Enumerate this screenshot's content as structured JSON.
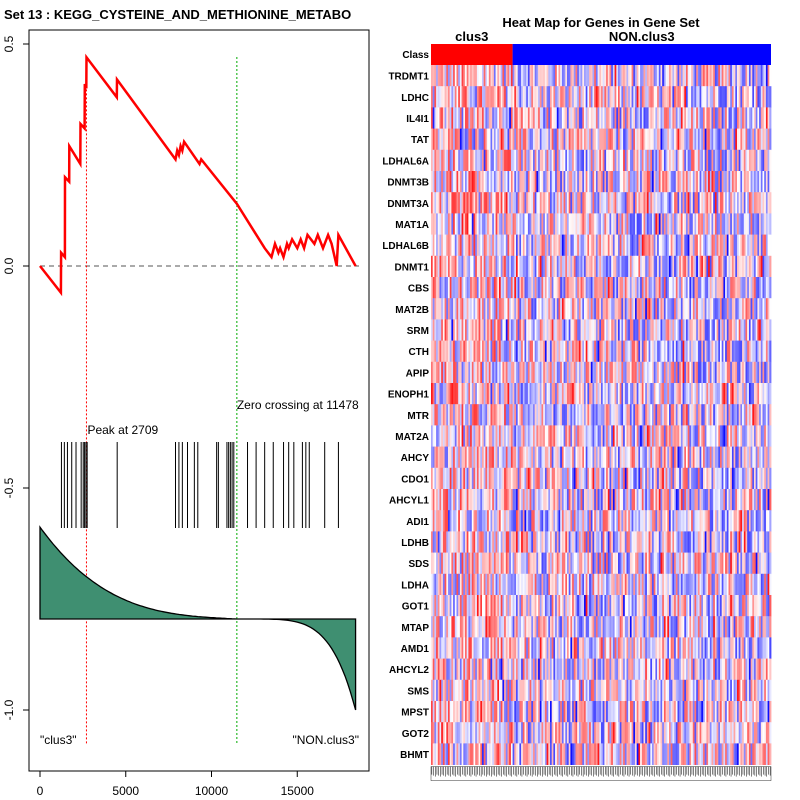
{
  "chart_data": [
    {
      "type": "line",
      "title": "Set  13 : KEGG_CYSTEINE_AND_METHIONINE_METABO",
      "xlabel": "",
      "ylabel": "",
      "xlim": [
        0,
        18600
      ],
      "ylim": [
        -1.1,
        0.52
      ],
      "x_ticks": [
        0,
        5000,
        10000,
        15000
      ],
      "x_tick_labels": [
        "0",
        "5000",
        "10000",
        "15000"
      ],
      "y_ticks": [
        0.5,
        0.0,
        -0.5,
        -1.0
      ],
      "y_tick_labels": [
        "0.5",
        "0.0",
        "-0.5",
        "-1.0"
      ],
      "series": [
        {
          "color": "#ff0000",
          "x": [
            0,
            1220,
            1230,
            1450,
            1460,
            1700,
            1710,
            2350,
            2360,
            2600,
            2610,
            2700,
            2709,
            4480,
            4490,
            7900,
            8000,
            8100,
            8200,
            8300,
            8400,
            9300,
            9400,
            11478,
            13100,
            13500,
            13700,
            13900,
            14000,
            14200,
            14400,
            14500,
            14700,
            15000,
            15200,
            15400,
            15600,
            16000,
            16200,
            16500,
            16800,
            17000,
            17300,
            17400,
            18400
          ],
          "y": [
            0,
            -0.06,
            0.03,
            0.02,
            0.2,
            0.19,
            0.27,
            0.23,
            0.32,
            0.31,
            0.41,
            0.4,
            0.47,
            0.38,
            0.42,
            0.24,
            0.26,
            0.25,
            0.27,
            0.26,
            0.28,
            0.23,
            0.24,
            0.14,
            0.04,
            0.02,
            0.05,
            0.03,
            0.04,
            0.02,
            0.05,
            0.04,
            0.06,
            0.04,
            0.06,
            0.04,
            0.07,
            0.05,
            0.07,
            0.04,
            0.07,
            0.05,
            0.0,
            0.07,
            0.0
          ]
        }
      ],
      "annotations": {
        "peak_label": "Peak at 2709",
        "peak_x": 2709,
        "zero_label": "Zero crossing at 11478",
        "zero_x": 11478,
        "left_label": "\"clus3\"",
        "right_label": "\"NON.clus3\""
      },
      "hit_positions": [
        1250,
        1420,
        1600,
        1850,
        2100,
        2400,
        2520,
        2600,
        2680,
        2750,
        4500,
        7900,
        8100,
        8300,
        8600,
        9000,
        9200,
        10300,
        10400,
        10900,
        11000,
        11100,
        11200,
        11300,
        12100,
        12600,
        13100,
        13600,
        14200,
        14500,
        14800,
        15300,
        15500,
        15700,
        16600,
        17400
      ],
      "ranked_metric": {
        "start": 0.22,
        "end": -0.48,
        "baseline_label_zero_x": 11478
      },
      "colors": {
        "es_line": "#ff0000",
        "peak_line": "#ff0000",
        "zero_line": "#00aa00",
        "metric_fill": "#3f8f71",
        "metric_outline": "#000000",
        "dashed_zero": "#555555"
      }
    },
    {
      "type": "heatmap",
      "title": "Heat Map for Genes in Gene Set",
      "class_row_label": "Class",
      "class_groups": [
        {
          "name": "clus3",
          "color": "#ff0000",
          "fraction": 0.24
        },
        {
          "name": "NON.clus3",
          "color": "#0000ff",
          "fraction": 0.76
        }
      ],
      "genes": [
        "TRDMT1",
        "LDHC",
        "IL4I1",
        "TAT",
        "LDHAL6A",
        "DNMT3B",
        "DNMT3A",
        "MAT1A",
        "LDHAL6B",
        "DNMT1",
        "CBS",
        "MAT2B",
        "SRM",
        "CTH",
        "APIP",
        "ENOPH1",
        "MTR",
        "MAT2A",
        "AHCY",
        "CDO1",
        "AHCYL1",
        "ADI1",
        "LDHB",
        "SDS",
        "LDHA",
        "GOT1",
        "MTAP",
        "AMD1",
        "AHCYL2",
        "SMS",
        "MPST",
        "GOT2",
        "BHMT"
      ],
      "n_samples": 200,
      "value_scale": "red (high) to blue (low)"
    }
  ]
}
